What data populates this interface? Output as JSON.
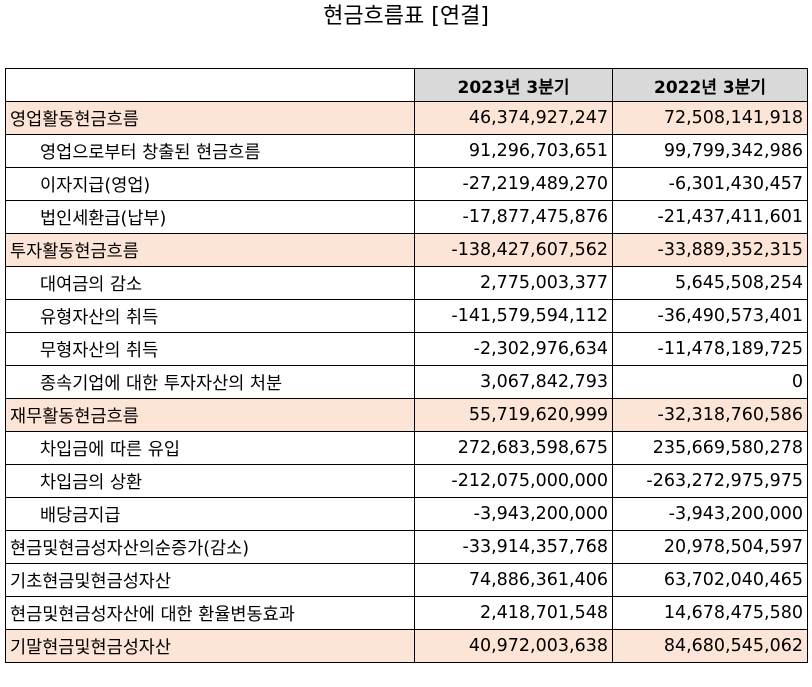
{
  "title": "현금흐름표 [연결]",
  "header": {
    "blank": "",
    "col1": "2023년 3분기",
    "col2": "2022년 3분기"
  },
  "rows": [
    {
      "label": "영업활동현금흐름",
      "v1": "46,374,927,247",
      "v2": "72,508,141,918",
      "section": true
    },
    {
      "label": "영업으로부터 창출된 현금흐름",
      "v1": "91,296,703,651",
      "v2": "99,799,342,986",
      "section": false
    },
    {
      "label": "이자지급(영업)",
      "v1": "-27,219,489,270",
      "v2": "-6,301,430,457",
      "section": false
    },
    {
      "label": "법인세환급(납부)",
      "v1": "-17,877,475,876",
      "v2": "-21,437,411,601",
      "section": false
    },
    {
      "label": "투자활동현금흐름",
      "v1": "-138,427,607,562",
      "v2": "-33,889,352,315",
      "section": true
    },
    {
      "label": "대여금의 감소",
      "v1": "2,775,003,377",
      "v2": "5,645,508,254",
      "section": false
    },
    {
      "label": "유형자산의 취득",
      "v1": "-141,579,594,112",
      "v2": "-36,490,573,401",
      "section": false
    },
    {
      "label": "무형자산의 취득",
      "v1": "-2,302,976,634",
      "v2": "-11,478,189,725",
      "section": false
    },
    {
      "label": "종속기업에 대한 투자자산의 처분",
      "v1": "3,067,842,793",
      "v2": "0",
      "section": false
    },
    {
      "label": "재무활동현금흐름",
      "v1": "55,719,620,999",
      "v2": "-32,318,760,586",
      "section": true
    },
    {
      "label": "차입금에 따른 유입",
      "v1": "272,683,598,675",
      "v2": "235,669,580,278",
      "section": false
    },
    {
      "label": "차입금의 상환",
      "v1": "-212,075,000,000",
      "v2": "-263,272,975,975",
      "section": false
    },
    {
      "label": "배당금지급",
      "v1": "-3,943,200,000",
      "v2": "-3,943,200,000",
      "section": false
    },
    {
      "label": "현금및현금성자산의순증가(감소)",
      "v1": "-33,914,357,768",
      "v2": "20,978,504,597",
      "section": false,
      "plain": true
    },
    {
      "label": "기초현금및현금성자산",
      "v1": "74,886,361,406",
      "v2": "63,702,040,465",
      "section": false,
      "plain": true
    },
    {
      "label": "현금및현금성자산에 대한 환율변동효과",
      "v1": "2,418,701,548",
      "v2": "14,678,475,580",
      "section": false,
      "plain": true
    },
    {
      "label": "기말현금및현금성자산",
      "v1": "40,972,003,638",
      "v2": "84,680,545,062",
      "section": true
    }
  ]
}
